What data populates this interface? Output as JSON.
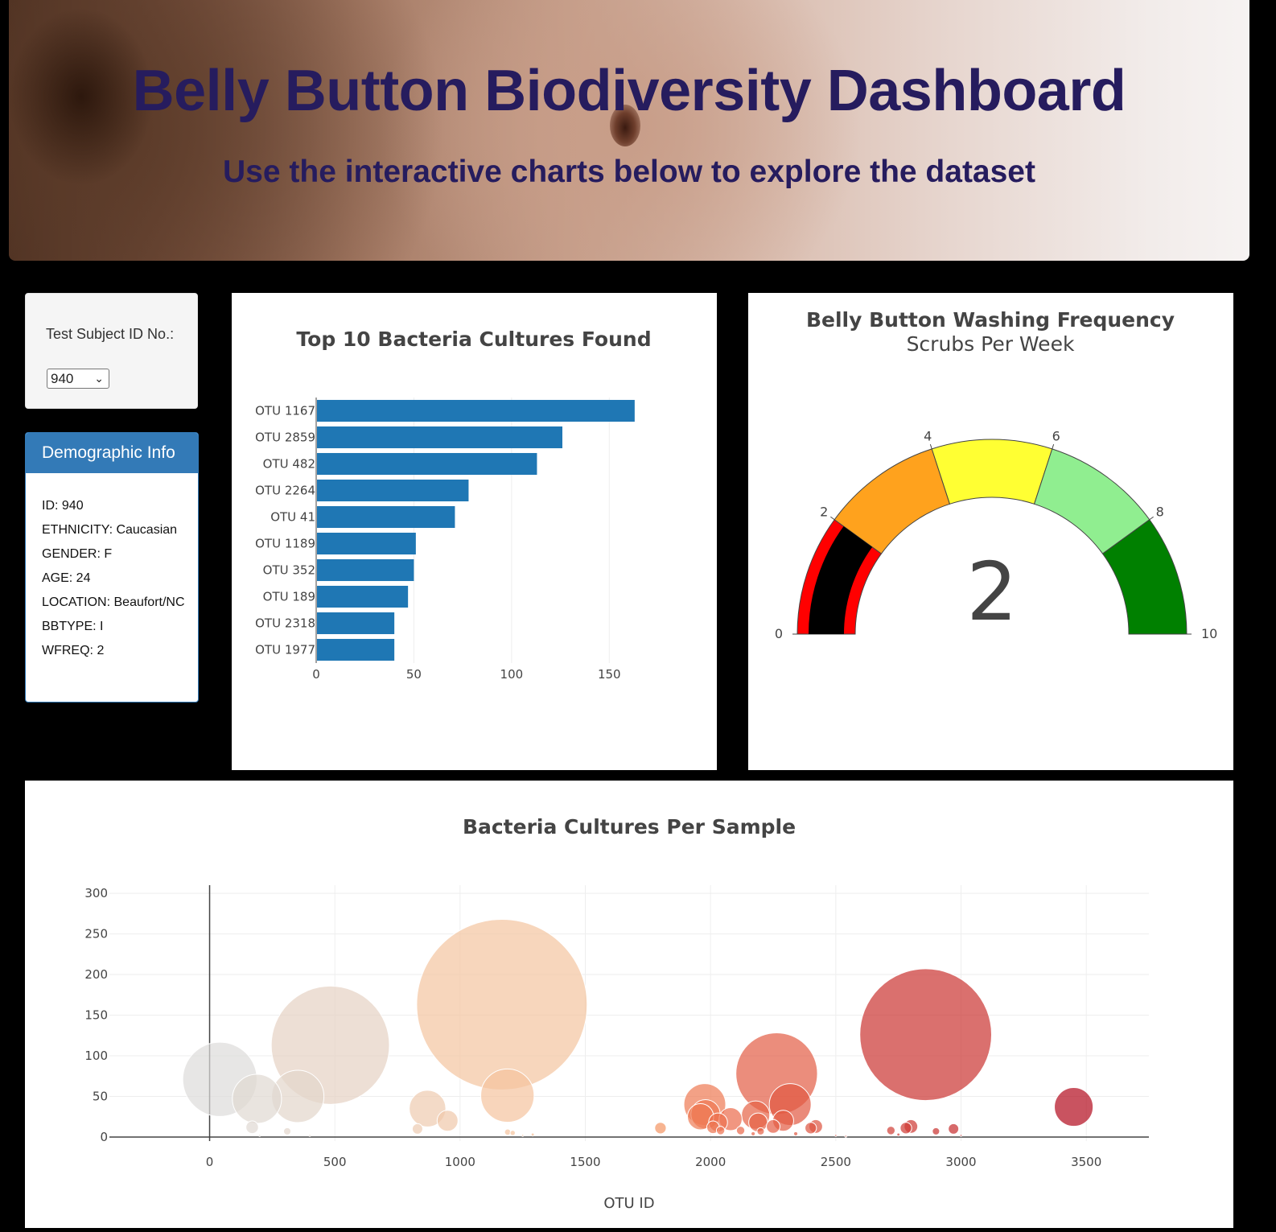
{
  "header": {
    "title": "Belly Button Biodiversity Dashboard",
    "subtitle": "Use the interactive charts below to explore the dataset"
  },
  "selector": {
    "label": "Test Subject ID No.:",
    "selected": "940"
  },
  "demographics": {
    "title": "Demographic Info",
    "rows": [
      "ID: 940",
      "ETHNICITY: Caucasian",
      "GENDER: F",
      "AGE: 24",
      "LOCATION: Beaufort/NC",
      "BBTYPE: I",
      "WFREQ: 2"
    ]
  },
  "chart_data": [
    {
      "type": "bar",
      "orientation": "horizontal",
      "title": "Top 10 Bacteria Cultures Found",
      "categories": [
        "OTU 1167",
        "OTU 2859",
        "OTU 482",
        "OTU 2264",
        "OTU 41",
        "OTU 1189",
        "OTU 352",
        "OTU 189",
        "OTU 2318",
        "OTU 1977"
      ],
      "values": [
        163,
        126,
        113,
        78,
        71,
        51,
        50,
        47,
        40,
        40
      ],
      "color": "#1f77b4",
      "xlim": [
        0,
        175
      ],
      "xticks": [
        0,
        50,
        100,
        150
      ]
    },
    {
      "type": "gauge",
      "title": "Belly Button Washing Frequency",
      "subtitle": "Scrubs Per Week",
      "value": 2,
      "range": [
        0,
        10
      ],
      "ticks": [
        0,
        2,
        4,
        6,
        8,
        10
      ],
      "bands": [
        {
          "from": 0,
          "to": 2,
          "color": "#ff0000"
        },
        {
          "from": 2,
          "to": 4,
          "color": "#ffa21d"
        },
        {
          "from": 4,
          "to": 6,
          "color": "#ffff33"
        },
        {
          "from": 6,
          "to": 8,
          "color": "#90ee90"
        },
        {
          "from": 8,
          "to": 10,
          "color": "#008000"
        }
      ],
      "bar_color": "#000000"
    },
    {
      "type": "scatter",
      "subtype": "bubble",
      "title": "Bacteria Cultures Per Sample",
      "xlabel": "OTU ID",
      "xlim": [
        -400,
        3750
      ],
      "ylim": [
        -5,
        310
      ],
      "xticks": [
        0,
        500,
        1000,
        1500,
        2000,
        2500,
        3000,
        3500
      ],
      "yticks": [
        0,
        50,
        100,
        150,
        200,
        250,
        300
      ],
      "colorscale": "reds",
      "points": [
        {
          "x": 41,
          "y": 71
        },
        {
          "x": 189,
          "y": 47
        },
        {
          "x": 352,
          "y": 50
        },
        {
          "x": 482,
          "y": 113
        },
        {
          "x": 1167,
          "y": 163
        },
        {
          "x": 1189,
          "y": 51
        },
        {
          "x": 2264,
          "y": 78
        },
        {
          "x": 2859,
          "y": 126
        },
        {
          "x": 2318,
          "y": 40
        },
        {
          "x": 1977,
          "y": 40
        },
        {
          "x": 3450,
          "y": 37
        },
        {
          "x": 870,
          "y": 35
        },
        {
          "x": 950,
          "y": 20
        },
        {
          "x": 1980,
          "y": 28
        },
        {
          "x": 2180,
          "y": 27
        },
        {
          "x": 2080,
          "y": 22
        },
        {
          "x": 2190,
          "y": 18
        },
        {
          "x": 2290,
          "y": 20
        },
        {
          "x": 2030,
          "y": 18
        },
        {
          "x": 1960,
          "y": 25
        },
        {
          "x": 2250,
          "y": 13
        },
        {
          "x": 170,
          "y": 12
        },
        {
          "x": 2420,
          "y": 13
        },
        {
          "x": 2800,
          "y": 13
        },
        {
          "x": 2400,
          "y": 11
        },
        {
          "x": 1800,
          "y": 11
        },
        {
          "x": 2010,
          "y": 12
        },
        {
          "x": 2780,
          "y": 11
        },
        {
          "x": 2970,
          "y": 10
        },
        {
          "x": 2720,
          "y": 8
        },
        {
          "x": 2900,
          "y": 7
        },
        {
          "x": 830,
          "y": 10
        },
        {
          "x": 310,
          "y": 7
        },
        {
          "x": 2200,
          "y": 7
        },
        {
          "x": 2120,
          "y": 8
        },
        {
          "x": 2040,
          "y": 8
        },
        {
          "x": 1210,
          "y": 5
        },
        {
          "x": 1290,
          "y": 3
        },
        {
          "x": 2170,
          "y": 4
        },
        {
          "x": 2750,
          "y": 3
        },
        {
          "x": 1190,
          "y": 6
        },
        {
          "x": 2340,
          "y": 4
        },
        {
          "x": 200,
          "y": 2
        },
        {
          "x": 400,
          "y": 2
        },
        {
          "x": 1250,
          "y": 2
        },
        {
          "x": 2500,
          "y": 2
        },
        {
          "x": 2540,
          "y": 1
        },
        {
          "x": 3000,
          "y": 2
        }
      ]
    }
  ]
}
